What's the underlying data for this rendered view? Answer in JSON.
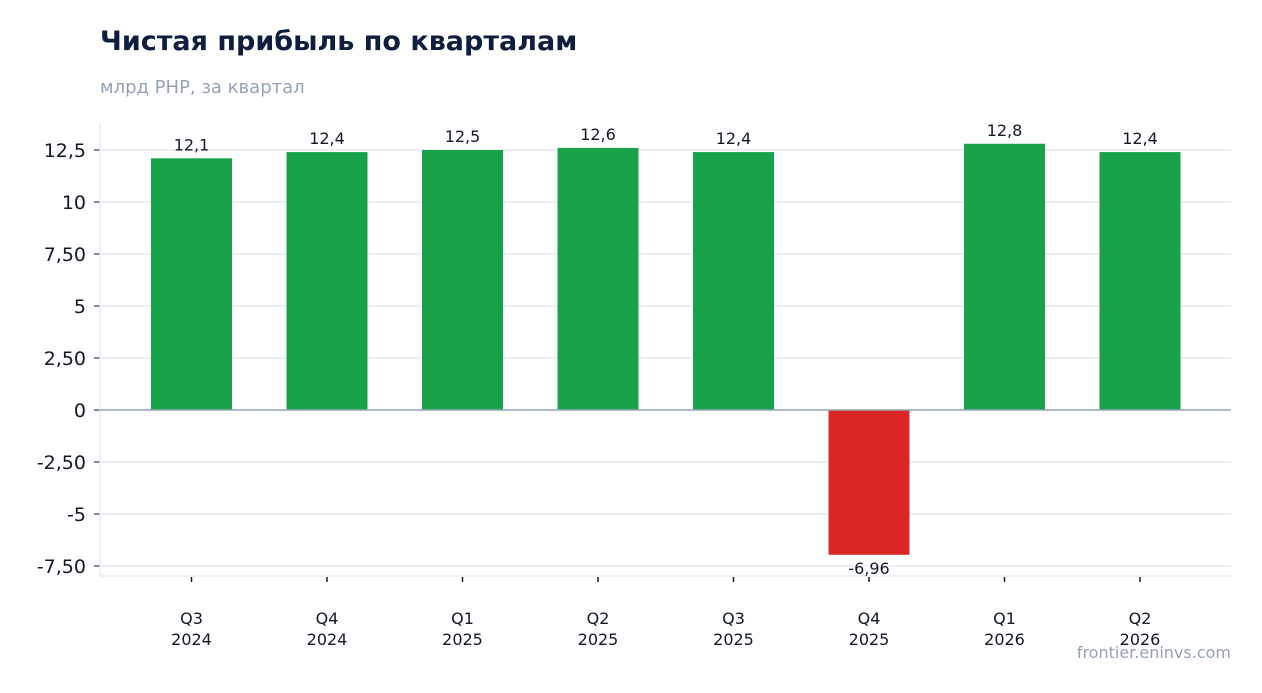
{
  "title": "Чистая прибыль по кварталам",
  "subtitle": "млрд РНР, за квартал",
  "watermark": "frontier.eninvs.com",
  "colors": {
    "positive": "#18a34a",
    "negative": "#dc2626",
    "grid": "#e2e8f0",
    "zero_line": "#94a3b8",
    "title": "#0f1d40",
    "muted": "#94a3b8"
  },
  "chart_data": {
    "type": "bar",
    "title": "Чистая прибыль по кварталам",
    "subtitle": "млрд РНР, за квартал",
    "categories": [
      [
        "Q3",
        "2024"
      ],
      [
        "Q4",
        "2024"
      ],
      [
        "Q1",
        "2025"
      ],
      [
        "Q2",
        "2025"
      ],
      [
        "Q3",
        "2025"
      ],
      [
        "Q4",
        "2025"
      ],
      [
        "Q1",
        "2026"
      ],
      [
        "Q2",
        "2026"
      ]
    ],
    "values": [
      12.1,
      12.4,
      12.5,
      12.6,
      12.4,
      -6.96,
      12.8,
      12.4
    ],
    "data_labels": [
      "12,1",
      "12,4",
      "12,5",
      "12,6",
      "12,4",
      "-6,96",
      "12,8",
      "12,4"
    ],
    "ylim": [
      -8,
      13.8
    ],
    "y_ticks": [
      12.5,
      10,
      7.5,
      5,
      2.5,
      0,
      -2.5,
      -5,
      -7.5
    ],
    "y_tick_labels": [
      "12,5",
      "10",
      "7,50",
      "5",
      "2,50",
      "0",
      "-2,50",
      "-5",
      "-7,50"
    ],
    "grid": true,
    "legend": "none"
  }
}
